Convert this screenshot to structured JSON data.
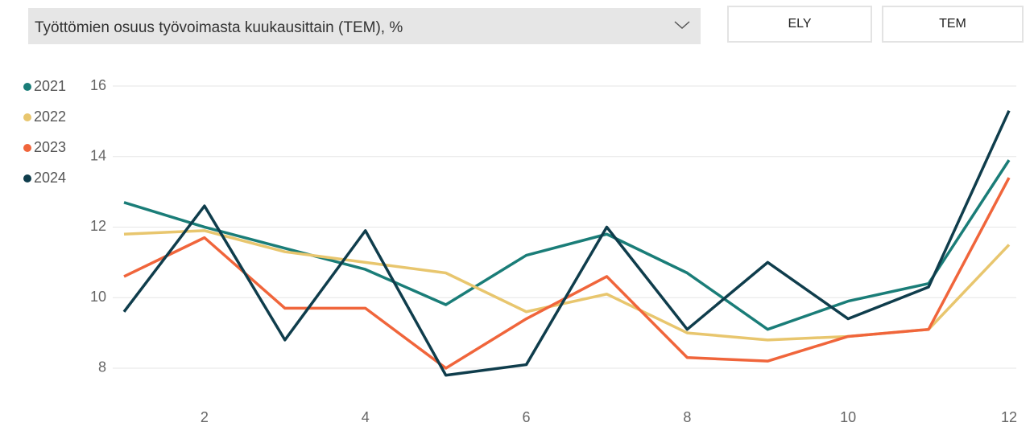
{
  "dropdown": {
    "label": "Työttömien osuus työvoimasta kuukausittain (TEM), %"
  },
  "buttons": [
    "ELY",
    "TEM"
  ],
  "chart_data": {
    "type": "line",
    "x": [
      1,
      2,
      3,
      4,
      5,
      6,
      7,
      8,
      9,
      10,
      11,
      12
    ],
    "series": [
      {
        "name": "2021",
        "color": "#1a7d78",
        "values": [
          12.7,
          12.0,
          11.4,
          10.8,
          9.8,
          11.2,
          11.8,
          10.7,
          9.1,
          9.9,
          10.4,
          13.9
        ]
      },
      {
        "name": "2022",
        "color": "#e8c66e",
        "values": [
          11.8,
          11.9,
          11.3,
          11.0,
          10.7,
          9.6,
          10.1,
          9.0,
          8.8,
          8.9,
          9.1,
          11.5
        ]
      },
      {
        "name": "2023",
        "color": "#f0653b",
        "values": [
          10.6,
          11.7,
          9.7,
          9.7,
          8.0,
          9.4,
          10.6,
          8.3,
          8.2,
          8.9,
          9.1,
          13.4
        ]
      },
      {
        "name": "2024",
        "color": "#0f3d4c",
        "values": [
          9.6,
          12.6,
          8.8,
          11.9,
          7.8,
          8.1,
          12.0,
          9.1,
          11.0,
          9.4,
          10.3,
          15.3
        ]
      }
    ],
    "xlim": [
      1,
      12
    ],
    "xticks": [
      2,
      4,
      6,
      8,
      10,
      12
    ],
    "ylim": [
      7.6,
      16
    ],
    "yticks": [
      8,
      10,
      12,
      14,
      16
    ],
    "grid": true
  }
}
